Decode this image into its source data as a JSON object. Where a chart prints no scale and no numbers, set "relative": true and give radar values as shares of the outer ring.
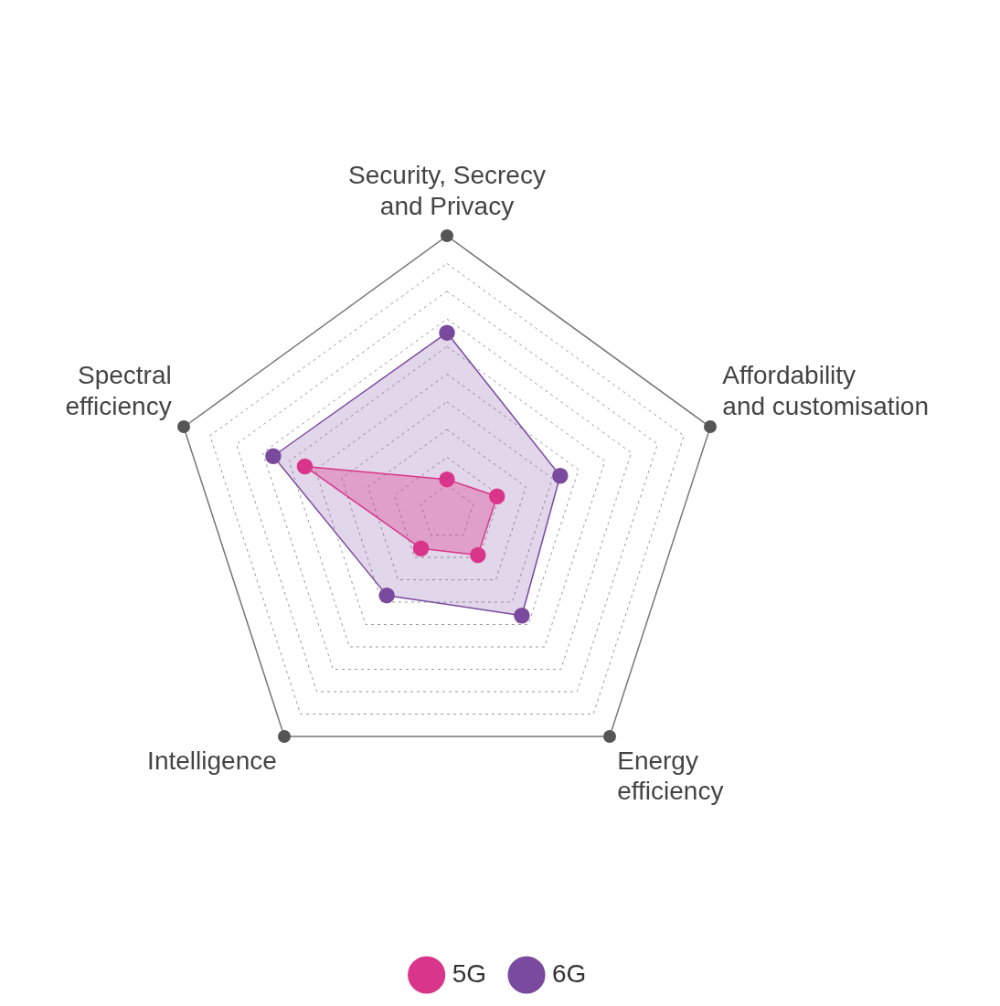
{
  "chart_data": {
    "type": "radar",
    "relative": true,
    "categories": [
      "Security, Secrecy and Privacy",
      "Affordability and customisation",
      "Energy efficiency",
      "Intelligence",
      "Spectral efficiency"
    ],
    "series": [
      {
        "name": "5G",
        "color": "#d9368b",
        "values": [
          0.12,
          0.19,
          0.19,
          0.16,
          0.54
        ]
      },
      {
        "name": "6G",
        "color": "#7a4a9e",
        "values": [
          0.65,
          0.43,
          0.46,
          0.37,
          0.66
        ]
      }
    ],
    "grid": true,
    "legend": "bottom",
    "marker": "circle",
    "line_style": "solid"
  }
}
